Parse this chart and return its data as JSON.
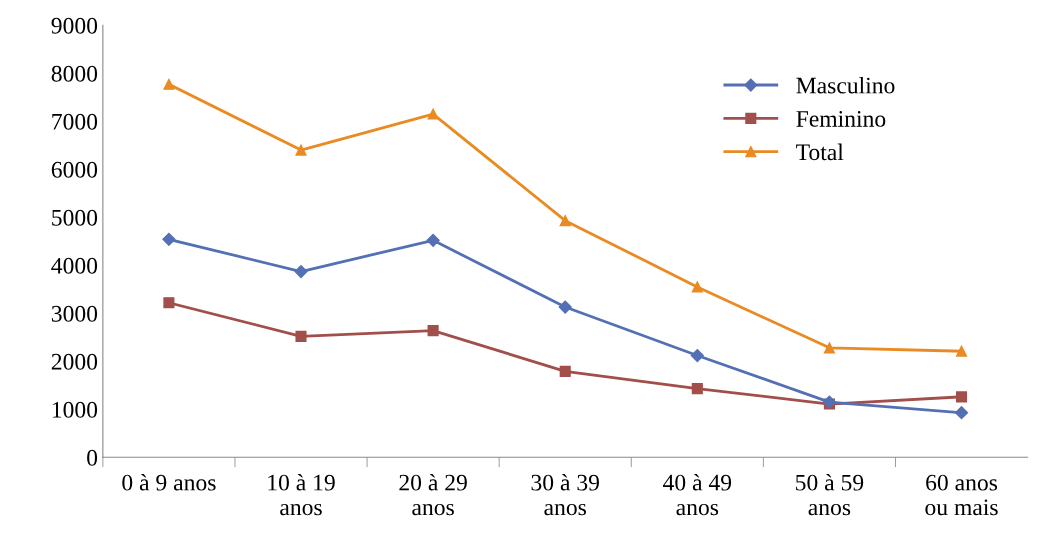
{
  "chart_data": {
    "type": "line",
    "categories": [
      "0 à 9 anos",
      "10 à 19\nanos",
      "20 à 29\nanos",
      "30 à 39\nanos",
      "40 à 49\nanos",
      "50 à 59\nanos",
      "60 anos\nou mais"
    ],
    "series": [
      {
        "name": "Masculino",
        "color": "#5470b5",
        "marker": "diamond",
        "values": [
          4540,
          3870,
          4520,
          3130,
          2120,
          1150,
          930
        ]
      },
      {
        "name": "Feminino",
        "color": "#a24f4c",
        "marker": "square",
        "values": [
          3220,
          2520,
          2640,
          1790,
          1430,
          1110,
          1260
        ]
      },
      {
        "name": "Total",
        "color": "#e98a22",
        "marker": "triangle",
        "values": [
          7770,
          6400,
          7150,
          4930,
          3550,
          2280,
          2210
        ]
      }
    ],
    "ylim": [
      0,
      9000
    ],
    "yticks": [
      0,
      1000,
      2000,
      3000,
      4000,
      5000,
      6000,
      7000,
      8000,
      9000
    ],
    "grid": false,
    "legend": "top right"
  }
}
